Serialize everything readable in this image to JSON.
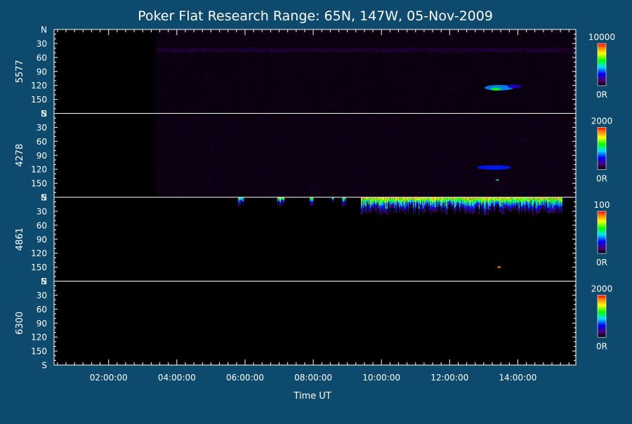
{
  "chart_data": {
    "type": "heatmap",
    "title": "Poker Flat Research Range: 65N, 147W, 05-Nov-2009",
    "xlabel": "Time UT",
    "x_tick_labels": [
      "02:00:00",
      "04:00:00",
      "06:00:00",
      "08:00:00",
      "10:00:00",
      "12:00:00",
      "14:00:00"
    ],
    "x_ticks_hours": [
      2,
      4,
      6,
      8,
      10,
      12,
      14
    ],
    "xlim_hours": [
      0.4,
      15.7
    ],
    "y_tick_labels": [
      "N",
      "30",
      "60",
      "90",
      "120",
      "150",
      "S"
    ],
    "y_ticks_values": [
      0,
      30,
      60,
      90,
      120,
      150,
      180
    ],
    "ylim": [
      0,
      180
    ],
    "panels": [
      {
        "wavelength": "5577",
        "colorbar_max_label": "10000",
        "colorbar_min_label": "0R",
        "coverage_start_hour": 3.4,
        "features": [
          {
            "kind": "band",
            "t0": 3.4,
            "t1": 15.7,
            "y0": 0,
            "y1": 180,
            "level": 0.04
          },
          {
            "kind": "band",
            "t0": 3.4,
            "t1": 15.7,
            "y0": 40,
            "y1": 48,
            "level": 0.08
          },
          {
            "kind": "blob",
            "t": 13.45,
            "y": 125,
            "dt": 0.85,
            "dy": 6,
            "level": 0.38
          },
          {
            "kind": "blob",
            "t": 13.35,
            "y": 128,
            "dt": 0.3,
            "dy": 3,
            "level": 0.6
          },
          {
            "kind": "blob",
            "t": 13.9,
            "y": 122,
            "dt": 0.4,
            "dy": 4,
            "level": 0.22
          }
        ]
      },
      {
        "wavelength": "4278",
        "colorbar_max_label": "2000",
        "colorbar_min_label": "0R",
        "coverage_start_hour": 3.4,
        "features": [
          {
            "kind": "band",
            "t0": 3.4,
            "t1": 15.7,
            "y0": 0,
            "y1": 180,
            "level": 0.05
          },
          {
            "kind": "blob",
            "t": 13.3,
            "y": 116,
            "dt": 1.0,
            "dy": 5,
            "level": 0.3
          },
          {
            "kind": "blob",
            "t": 13.4,
            "y": 143,
            "dt": 0.1,
            "dy": 1.5,
            "level": 0.5
          }
        ]
      },
      {
        "wavelength": "4861",
        "colorbar_max_label": "100",
        "colorbar_min_label": "0R",
        "coverage_start_hour": 3.4,
        "features": [
          {
            "kind": "north_edge",
            "t0": 5.8,
            "t1": 5.95,
            "depth": 22,
            "level": 0.75
          },
          {
            "kind": "north_edge",
            "t0": 6.95,
            "t1": 7.15,
            "depth": 20,
            "level": 0.85
          },
          {
            "kind": "north_edge",
            "t0": 7.9,
            "t1": 8.0,
            "depth": 22,
            "level": 0.7
          },
          {
            "kind": "north_edge",
            "t0": 8.55,
            "t1": 8.6,
            "depth": 18,
            "level": 0.7
          },
          {
            "kind": "north_edge",
            "t0": 8.85,
            "t1": 8.95,
            "depth": 20,
            "level": 0.75
          },
          {
            "kind": "north_edge",
            "t0": 9.4,
            "t1": 15.3,
            "depth": 38,
            "level": 0.95
          },
          {
            "kind": "blob",
            "t": 13.45,
            "y": 150,
            "dt": 0.1,
            "dy": 2,
            "level": 0.9
          }
        ]
      },
      {
        "wavelength": "6300",
        "colorbar_max_label": "2000",
        "colorbar_min_label": "0R",
        "coverage_start_hour": 15.7,
        "features": []
      }
    ]
  }
}
